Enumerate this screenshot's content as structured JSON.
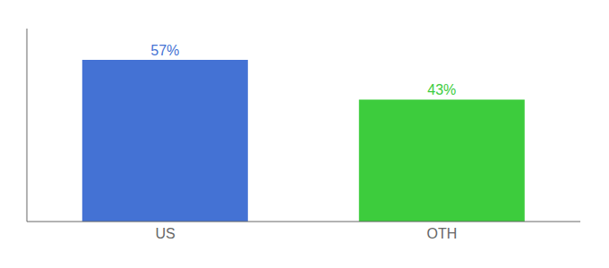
{
  "chart_data": {
    "type": "bar",
    "categories": [
      "US",
      "OTH"
    ],
    "values": [
      57,
      43
    ],
    "value_labels": [
      "57%",
      "43%"
    ],
    "colors": [
      "#4472d4",
      "#3dcc3d"
    ],
    "ylim": [
      0,
      68
    ],
    "data_labels": true,
    "tick_labels": "x",
    "grid": false
  }
}
